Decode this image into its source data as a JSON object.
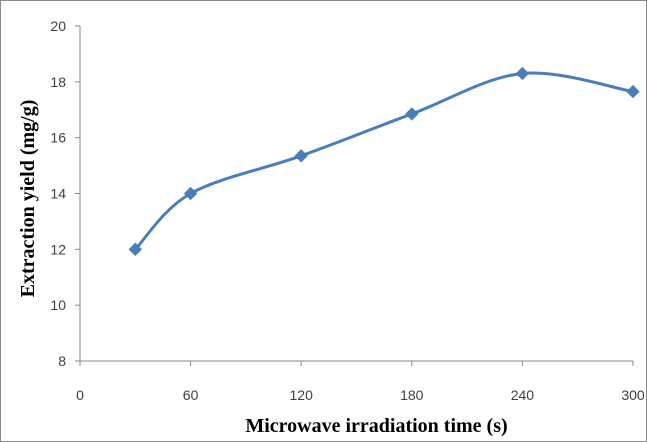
{
  "chart_data": {
    "type": "line",
    "xlabel": "Microwave irradiation time (s)",
    "ylabel": "Extraction yield (mg/g)",
    "xlim": [
      0,
      300
    ],
    "ylim": [
      8,
      20
    ],
    "x_ticks": [
      0,
      60,
      120,
      180,
      240,
      300
    ],
    "y_ticks": [
      8,
      10,
      12,
      14,
      16,
      18,
      20
    ],
    "grid": false,
    "smooth": true,
    "marker": "diamond",
    "color": "#4a7ebb",
    "series": [
      {
        "x": [
          30,
          60,
          120,
          180,
          240,
          300
        ],
        "values": [
          12.0,
          14.0,
          15.35,
          16.85,
          18.3,
          17.65
        ]
      }
    ]
  }
}
